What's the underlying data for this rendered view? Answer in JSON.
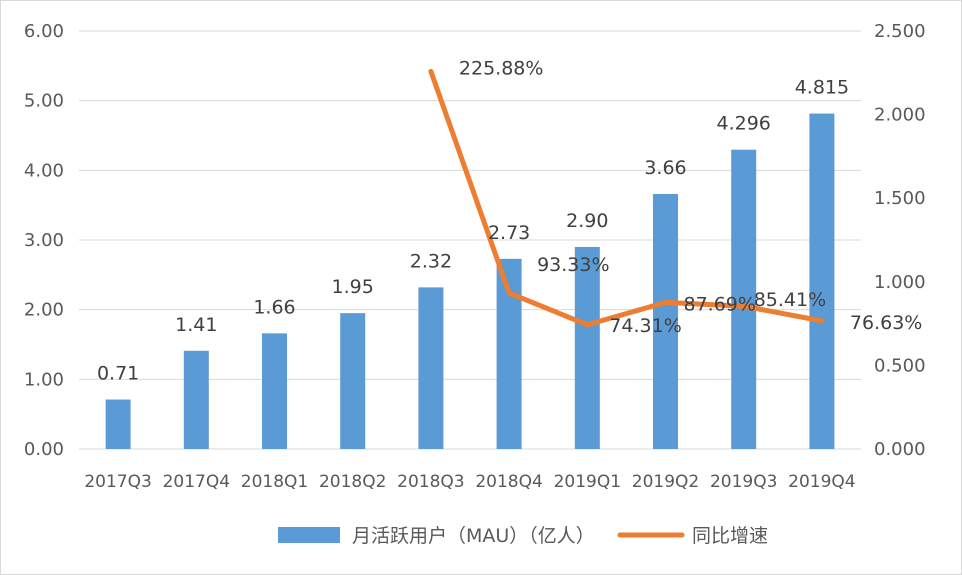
{
  "chart_data": {
    "type": "bar",
    "categories": [
      "2017Q3",
      "2017Q4",
      "2018Q1",
      "2018Q2",
      "2018Q3",
      "2018Q4",
      "2019Q1",
      "2019Q2",
      "2019Q3",
      "2019Q4"
    ],
    "series": [
      {
        "name": "月活跃用户（MAU）（亿人）",
        "type": "bar",
        "axis": "left",
        "color": "#5B9BD5",
        "values": [
          0.71,
          1.41,
          1.66,
          1.95,
          2.32,
          2.73,
          2.9,
          3.66,
          4.296,
          4.815
        ],
        "labels": [
          "0.71",
          "1.41",
          "1.66",
          "1.95",
          "2.32",
          "2.73",
          "2.90",
          "3.66",
          "4.296",
          "4.815"
        ]
      },
      {
        "name": "同比增速",
        "type": "line",
        "axis": "right",
        "color": "#ED7D31",
        "values": [
          null,
          null,
          null,
          null,
          2.2588,
          0.9333,
          0.7431,
          0.8769,
          0.8541,
          0.7663
        ],
        "labels": [
          null,
          null,
          null,
          null,
          "225.88%",
          "93.33%",
          "74.31%",
          "87.69%",
          "85.41%",
          "76.63%"
        ]
      }
    ],
    "y_left": {
      "min": 0,
      "max": 6,
      "step": 1,
      "tick_labels": [
        "0.00",
        "1.00",
        "2.00",
        "3.00",
        "4.00",
        "5.00",
        "6.00"
      ]
    },
    "y_right": {
      "min": 0,
      "max": 2.5,
      "step": 0.5,
      "tick_labels": [
        "0.000",
        "0.500",
        "1.000",
        "1.500",
        "2.000",
        "2.500"
      ]
    },
    "grid": true,
    "legend_position": "bottom"
  }
}
